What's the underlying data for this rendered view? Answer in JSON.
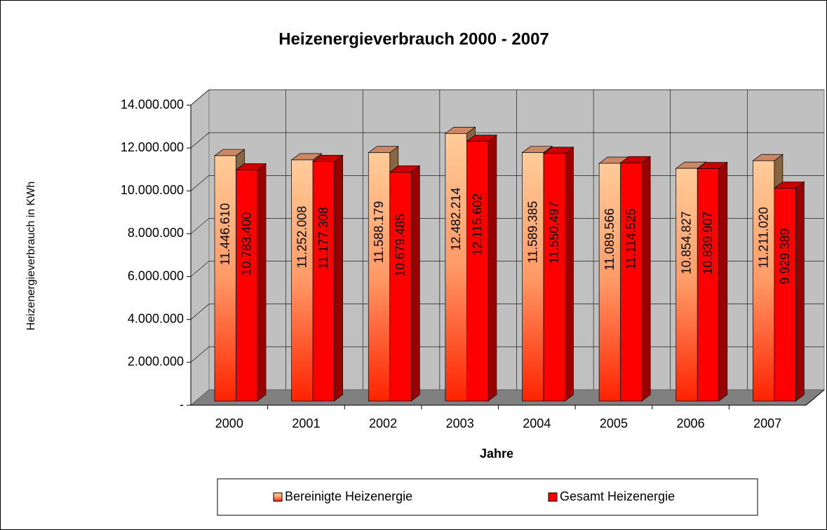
{
  "chart_data": {
    "type": "bar",
    "title": "Heizenergieverbrauch 2000 - 2007",
    "x_label": "Jahre",
    "y_label": "Heizenergieverbrauch in KWh",
    "categories": [
      "2000",
      "2001",
      "2002",
      "2003",
      "2004",
      "2005",
      "2006",
      "2007"
    ],
    "series": [
      {
        "name": "Bereinigte Heizenergie",
        "color": "#ffcc99",
        "values": [
          11446610,
          11252008,
          11588179,
          12482214,
          11589385,
          11089566,
          10854827,
          11211020
        ],
        "value_labels": [
          "11.446.610",
          "11.252.008",
          "11.588.179",
          "12.482.214",
          "11.589.385",
          "11.089.566",
          "10.854.827",
          "11.211.020"
        ]
      },
      {
        "name": "Gesamt Heizenergie",
        "color": "#ff0000",
        "values": [
          10783400,
          11177308,
          10679485,
          12115602,
          11550497,
          11114525,
          10839907,
          9929389
        ],
        "value_labels": [
          "10.783.400",
          "11.177.308",
          "10.679.485",
          "12.115.602",
          "11.550.497",
          "11.114.525",
          "10.839.907",
          "9.929.389"
        ]
      }
    ],
    "ylim": [
      0,
      14000000
    ],
    "yticks": [
      {
        "value": 0,
        "label": "-"
      },
      {
        "value": 2000000,
        "label": "2.000.000"
      },
      {
        "value": 4000000,
        "label": "4.000.000"
      },
      {
        "value": 6000000,
        "label": "6.000.000"
      },
      {
        "value": 8000000,
        "label": "8.000.000"
      },
      {
        "value": 10000000,
        "label": "10.000.000"
      },
      {
        "value": 12000000,
        "label": "12.000.000"
      },
      {
        "value": 14000000,
        "label": "14.000.000"
      }
    ],
    "grid": true,
    "legend": "bottom"
  }
}
